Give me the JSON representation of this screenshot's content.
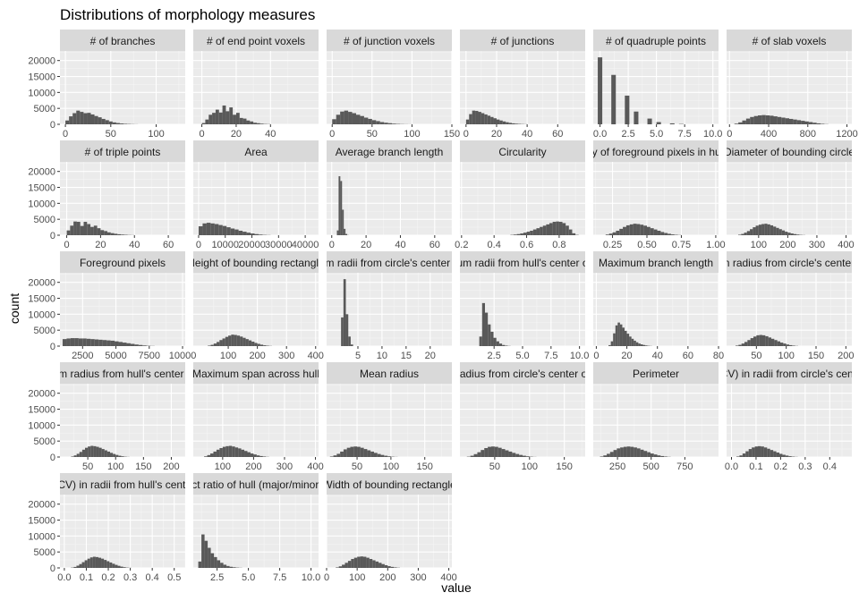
{
  "chart_data": {
    "type": "bar",
    "title": "Distributions of morphology measures",
    "xlabel": "value",
    "ylabel": "count",
    "y_ticks": [
      "0",
      "5000",
      "10000",
      "15000",
      "20000"
    ],
    "ylim": [
      0,
      23000
    ],
    "grid": true,
    "bar_color": "#595959",
    "panel_bg": "#ebebeb",
    "strip_bg": "#d9d9d9",
    "facets": [
      {
        "label": "# of branches",
        "xlim": [
          -6,
          132
        ],
        "x_ticks": [
          "0",
          "50",
          "100"
        ],
        "x_tick_values": [
          0,
          50,
          100
        ],
        "bin_start": 0,
        "bin_width": 4,
        "counts": [
          1200,
          2500,
          3500,
          4300,
          3900,
          3500,
          3600,
          3100,
          2600,
          2200,
          1700,
          1300,
          900,
          600,
          400,
          250,
          150,
          100,
          60,
          30
        ]
      },
      {
        "label": "# of end point voxels",
        "xlim": [
          -5,
          68
        ],
        "x_ticks": [
          "0",
          "20",
          "40"
        ],
        "x_tick_values": [
          0,
          20,
          40
        ],
        "bin_start": 0,
        "bin_width": 2,
        "counts": [
          400,
          1500,
          3000,
          3600,
          4600,
          3700,
          5900,
          4100,
          5300,
          3000,
          3600,
          2000,
          1800,
          1200,
          900,
          500,
          350,
          200,
          100,
          60
        ]
      },
      {
        "label": "# of junction voxels",
        "xlim": [
          -7,
          150
        ],
        "x_ticks": [
          "0",
          "50",
          "100",
          "150"
        ],
        "x_tick_values": [
          0,
          50,
          100,
          150
        ],
        "bin_start": 0,
        "bin_width": 5,
        "counts": [
          1600,
          3000,
          4000,
          4300,
          3900,
          3500,
          3000,
          2600,
          2100,
          1700,
          1300,
          1000,
          700,
          500,
          350,
          200,
          120,
          70,
          40,
          20
        ]
      },
      {
        "label": "# of junctions",
        "xlim": [
          -4,
          78
        ],
        "x_ticks": [
          "0",
          "20",
          "40",
          "60"
        ],
        "x_tick_values": [
          0,
          20,
          40,
          60
        ],
        "bin_start": 0,
        "bin_width": 2,
        "counts": [
          1500,
          3200,
          4300,
          4200,
          3900,
          3500,
          3100,
          2700,
          2300,
          1900,
          1500,
          1200,
          900,
          650,
          450,
          300,
          200,
          130,
          80,
          40
        ]
      },
      {
        "label": "# of quadruple points",
        "xlim": [
          -0.6,
          10.5
        ],
        "x_ticks": [
          "0.0",
          "2.5",
          "5.0",
          "7.5",
          "10.0"
        ],
        "x_tick_values": [
          0,
          2.5,
          5,
          7.5,
          10
        ],
        "bin_start": -0.2,
        "bin_width": 0.4,
        "counts": [
          21000,
          0,
          0,
          15500,
          0,
          0,
          9000,
          0,
          4000,
          0,
          0,
          1800,
          0,
          700,
          0,
          0,
          300,
          0,
          100,
          0
        ]
      },
      {
        "label": "# of slab voxels",
        "xlim": [
          -30,
          1250
        ],
        "x_ticks": [
          "0",
          "400",
          "800",
          "1200"
        ],
        "x_tick_values": [
          0,
          400,
          800,
          1200
        ],
        "bin_start": 50,
        "bin_width": 40,
        "counts": [
          200,
          600,
          1200,
          1800,
          2300,
          2600,
          2800,
          2900,
          2800,
          2700,
          2500,
          2300,
          2100,
          1900,
          1700,
          1500,
          1300,
          1100,
          900,
          700,
          500,
          300,
          150,
          60
        ]
      },
      {
        "label": "# of triple points",
        "xlim": [
          -4,
          70
        ],
        "x_ticks": [
          "0",
          "20",
          "40",
          "60"
        ],
        "x_tick_values": [
          0,
          20,
          40,
          60
        ],
        "bin_start": 0,
        "bin_width": 2,
        "counts": [
          1500,
          3000,
          4300,
          4200,
          2900,
          4200,
          3500,
          2600,
          3000,
          2200,
          1600,
          1300,
          900,
          650,
          450,
          300,
          200,
          130,
          70,
          40
        ]
      },
      {
        "label": "Area",
        "xlim": [
          -2000,
          45000
        ],
        "x_ticks": [
          "0",
          "10000",
          "20000",
          "30000",
          "40000"
        ],
        "x_tick_values": [
          0,
          10000,
          20000,
          30000,
          40000
        ],
        "bin_start": 0,
        "bin_width": 1500,
        "counts": [
          2800,
          3700,
          3900,
          3700,
          3500,
          3200,
          2900,
          2500,
          2100,
          1800,
          1400,
          1100,
          800,
          550,
          350,
          200,
          100,
          50
        ]
      },
      {
        "label": "Average branch length",
        "xlim": [
          -3,
          70
        ],
        "x_ticks": [
          "0",
          "20",
          "40",
          "60"
        ],
        "x_tick_values": [
          0,
          20,
          40,
          60
        ],
        "bin_start": 3,
        "bin_width": 1,
        "counts": [
          1500,
          18500,
          17000,
          8000,
          2000,
          400,
          50
        ]
      },
      {
        "label": "Circularity",
        "xlim": [
          0.19,
          0.96
        ],
        "x_ticks": [
          "0.2",
          "0.4",
          "0.6",
          "0.8"
        ],
        "x_tick_values": [
          0.2,
          0.4,
          0.6,
          0.8
        ],
        "bin_start": 0.5,
        "bin_width": 0.02,
        "counts": [
          100,
          200,
          350,
          550,
          800,
          1100,
          1400,
          1800,
          2200,
          2600,
          3000,
          3400,
          3800,
          4200,
          4300,
          4200,
          3800,
          3000,
          1800,
          600,
          100
        ]
      },
      {
        "label": "Density of foreground pixels in hull area",
        "xlim": [
          0.11,
          1.02
        ],
        "x_ticks": [
          "0.25",
          "0.50",
          "0.75",
          "1.00"
        ],
        "x_tick_values": [
          0.25,
          0.5,
          0.75,
          1
        ],
        "bin_start": 0.2,
        "bin_width": 0.025,
        "counts": [
          200,
          500,
          900,
          1400,
          2000,
          2600,
          3100,
          3400,
          3600,
          3500,
          3300,
          3000,
          2600,
          2200,
          1800,
          1400,
          1000,
          700,
          450,
          250,
          130,
          60
        ]
      },
      {
        "label": "Diameter of bounding circle",
        "xlim": [
          -10,
          420
        ],
        "x_ticks": [
          "100",
          "200",
          "300",
          "400"
        ],
        "x_tick_values": [
          100,
          200,
          300,
          400
        ],
        "bin_start": 30,
        "bin_width": 10,
        "counts": [
          150,
          400,
          800,
          1300,
          1900,
          2500,
          3000,
          3300,
          3500,
          3600,
          3400,
          3100,
          2700,
          2300,
          1900,
          1500,
          1100,
          800,
          550,
          350,
          200,
          100,
          50
        ]
      },
      {
        "label": "Foreground pixels",
        "xlim": [
          800,
          10200
        ],
        "x_ticks": [
          "2500",
          "5000",
          "7500",
          "10000"
        ],
        "x_tick_values": [
          2500,
          5000,
          7500,
          10000
        ],
        "bin_start": 1000,
        "bin_width": 300,
        "counts": [
          2200,
          2400,
          2500,
          2500,
          2400,
          2400,
          2300,
          2200,
          2100,
          2000,
          1900,
          1800,
          1700,
          1500,
          1300,
          1100,
          900,
          700,
          500,
          350,
          200,
          100,
          50
        ]
      },
      {
        "label": "Height of bounding rectangle",
        "xlim": [
          -20,
          410
        ],
        "x_ticks": [
          "100",
          "200",
          "300",
          "400"
        ],
        "x_tick_values": [
          100,
          200,
          300,
          400
        ],
        "bin_start": 30,
        "bin_width": 10,
        "counts": [
          150,
          400,
          800,
          1300,
          1900,
          2400,
          2900,
          3300,
          3600,
          3500,
          3300,
          3000,
          2600,
          2200,
          1800,
          1400,
          1000,
          700,
          450,
          250,
          130,
          60
        ]
      },
      {
        "label": "Maximum radii from circle's center of mass",
        "xlim": [
          -1.5,
          24.5
        ],
        "x_ticks": [
          "5",
          "10",
          "15",
          "20"
        ],
        "x_tick_values": [
          5,
          10,
          15,
          20
        ],
        "bin_start": 1.5,
        "bin_width": 0.5,
        "counts": [
          9000,
          21000,
          10000,
          3000,
          500
        ]
      },
      {
        "label": "Maximum radii from hull's center of mass",
        "xlim": [
          -0.5,
          10.5
        ],
        "x_ticks": [
          "2.5",
          "5.0",
          "7.5",
          "10.0"
        ],
        "x_tick_values": [
          2.5,
          5,
          7.5,
          10
        ],
        "bin_start": 1.2,
        "bin_width": 0.25,
        "counts": [
          3000,
          13500,
          10500,
          6800,
          4500,
          2600,
          1500,
          800,
          350,
          150,
          60
        ]
      },
      {
        "label": "Maximum branch length",
        "xlim": [
          -2,
          80
        ],
        "x_ticks": [
          "0",
          "20",
          "40",
          "60",
          "80"
        ],
        "x_tick_values": [
          0,
          20,
          40,
          60,
          80
        ],
        "bin_start": 8,
        "bin_width": 1.5,
        "counts": [
          300,
          1500,
          4000,
          6500,
          7400,
          6800,
          5800,
          4800,
          3900,
          3000,
          2300,
          1700,
          1200,
          800,
          550,
          350,
          200,
          100,
          50
        ]
      },
      {
        "label": "Maximum radius from circle's center of mass",
        "xlim": [
          0,
          210
        ],
        "x_ticks": [
          "50",
          "100",
          "150",
          "200"
        ],
        "x_tick_values": [
          50,
          100,
          150,
          200
        ],
        "bin_start": 15,
        "bin_width": 5,
        "counts": [
          150,
          400,
          800,
          1300,
          1900,
          2500,
          3000,
          3400,
          3500,
          3400,
          3100,
          2700,
          2300,
          1900,
          1500,
          1100,
          800,
          500,
          300,
          150,
          60
        ]
      },
      {
        "label": "Maximum radius from hull's center of mass",
        "xlim": [
          0,
          225
        ],
        "x_ticks": [
          "50",
          "100",
          "150",
          "200"
        ],
        "x_tick_values": [
          50,
          100,
          150,
          200
        ],
        "bin_start": 20,
        "bin_width": 5,
        "counts": [
          150,
          500,
          1000,
          1600,
          2300,
          2900,
          3300,
          3500,
          3400,
          3200,
          2900,
          2500,
          2100,
          1700,
          1300,
          950,
          650,
          400,
          220,
          100,
          40
        ]
      },
      {
        "label": "Maximum span across hull",
        "xlim": [
          5,
          410
        ],
        "x_ticks": [
          "100",
          "200",
          "300",
          "400"
        ],
        "x_tick_values": [
          100,
          200,
          300,
          400
        ],
        "bin_start": 40,
        "bin_width": 10,
        "counts": [
          200,
          600,
          1100,
          1700,
          2300,
          2800,
          3200,
          3400,
          3500,
          3300,
          3000,
          2700,
          2300,
          1900,
          1500,
          1100,
          800,
          500,
          300,
          150,
          60
        ]
      },
      {
        "label": "Mean radius",
        "xlim": [
          5,
          190
        ],
        "x_ticks": [
          "50",
          "100",
          "150"
        ],
        "x_tick_values": [
          50,
          100,
          150
        ],
        "bin_start": 10,
        "bin_width": 5,
        "counts": [
          150,
          500,
          1000,
          1700,
          2400,
          2900,
          3200,
          3300,
          3200,
          2900,
          2500,
          2100,
          1700,
          1300,
          950,
          650,
          400,
          220,
          100,
          40
        ]
      },
      {
        "label": "Mean radius from circle's center of mass",
        "xlim": [
          0,
          180
        ],
        "x_ticks": [
          "50",
          "100",
          "150"
        ],
        "x_tick_values": [
          50,
          100,
          150
        ],
        "bin_start": 10,
        "bin_width": 5,
        "counts": [
          100,
          400,
          900,
          1500,
          2200,
          2800,
          3200,
          3300,
          3200,
          2900,
          2500,
          2100,
          1700,
          1300,
          950,
          650,
          400,
          220,
          100,
          40
        ]
      },
      {
        "label": "Perimeter",
        "xlim": [
          70,
          1000
        ],
        "x_ticks": [
          "250",
          "500",
          "750"
        ],
        "x_tick_values": [
          250,
          500,
          750
        ],
        "bin_start": 120,
        "bin_width": 25,
        "counts": [
          150,
          500,
          1000,
          1600,
          2200,
          2700,
          3000,
          3200,
          3300,
          3200,
          3000,
          2700,
          2300,
          1900,
          1500,
          1100,
          800,
          500,
          300,
          150,
          60
        ]
      },
      {
        "label": "Variation (CV) in radii from circle's center of mass",
        "xlim": [
          -0.02,
          0.49
        ],
        "x_ticks": [
          "0.0",
          "0.1",
          "0.2",
          "0.3",
          "0.4"
        ],
        "x_tick_values": [
          0,
          0.1,
          0.2,
          0.3,
          0.4
        ],
        "bin_start": 0.02,
        "bin_width": 0.0125,
        "counts": [
          150,
          500,
          1100,
          1800,
          2500,
          3000,
          3300,
          3400,
          3300,
          3000,
          2600,
          2200,
          1800,
          1400,
          1000,
          700,
          450,
          250,
          120,
          50
        ]
      },
      {
        "label": "Variation (CV) in radii from hull's center of mass",
        "xlim": [
          -0.02,
          0.55
        ],
        "x_ticks": [
          "0.0",
          "0.1",
          "0.2",
          "0.3",
          "0.4",
          "0.5"
        ],
        "x_tick_values": [
          0,
          0.1,
          0.2,
          0.3,
          0.4,
          0.5
        ],
        "bin_start": 0.03,
        "bin_width": 0.0125,
        "counts": [
          100,
          300,
          700,
          1200,
          1800,
          2400,
          2900,
          3300,
          3500,
          3400,
          3200,
          2900,
          2500,
          2100,
          1700,
          1300,
          950,
          650,
          400,
          220,
          100,
          40
        ]
      },
      {
        "label": "Aspect ratio of hull (major/minor axis)",
        "xlim": [
          0.6,
          10.6
        ],
        "x_ticks": [
          "2.5",
          "5.0",
          "7.5",
          "10.0"
        ],
        "x_tick_values": [
          2.5,
          5,
          7.5,
          10
        ],
        "bin_start": 1.0,
        "bin_width": 0.25,
        "counts": [
          2000,
          10500,
          8500,
          6300,
          4600,
          3400,
          2400,
          1600,
          1000,
          600,
          350,
          200,
          100,
          50
        ]
      },
      {
        "label": "Width of bounding rectangle",
        "xlim": [
          0,
          410
        ],
        "x_ticks": [
          "0",
          "100",
          "200",
          "300",
          "400"
        ],
        "x_tick_values": [
          0,
          100,
          200,
          300,
          400
        ],
        "bin_start": 30,
        "bin_width": 10,
        "counts": [
          150,
          500,
          1000,
          1600,
          2200,
          2800,
          3200,
          3500,
          3600,
          3500,
          3200,
          2800,
          2400,
          2000,
          1600,
          1200,
          850,
          550,
          320,
          160,
          70
        ]
      }
    ]
  }
}
